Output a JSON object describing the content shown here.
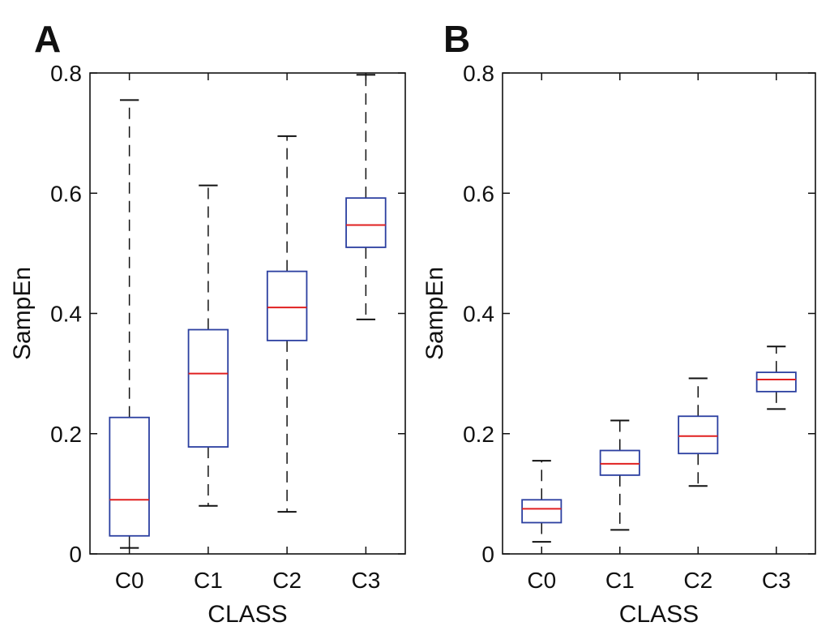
{
  "chart_data": [
    {
      "panel": "A",
      "type": "boxplot",
      "xlabel": "CLASS",
      "ylabel": "SampEn",
      "ylim": [
        0,
        0.8
      ],
      "yticks": [
        "0",
        "0.2",
        "0.4",
        "0.6",
        "0.8"
      ],
      "categories": [
        "C0",
        "C1",
        "C2",
        "C3"
      ],
      "boxes": [
        {
          "category": "C0",
          "whisker_low": 0.01,
          "q1": 0.03,
          "median": 0.09,
          "q3": 0.227,
          "whisker_high": 0.755
        },
        {
          "category": "C1",
          "whisker_low": 0.08,
          "q1": 0.178,
          "median": 0.3,
          "q3": 0.373,
          "whisker_high": 0.613
        },
        {
          "category": "C2",
          "whisker_low": 0.07,
          "q1": 0.355,
          "median": 0.41,
          "q3": 0.47,
          "whisker_high": 0.695
        },
        {
          "category": "C3",
          "whisker_low": 0.39,
          "q1": 0.51,
          "median": 0.547,
          "q3": 0.592,
          "whisker_high": 0.797
        }
      ]
    },
    {
      "panel": "B",
      "type": "boxplot",
      "xlabel": "CLASS",
      "ylabel": "SampEn",
      "ylim": [
        0,
        0.8
      ],
      "yticks": [
        "0",
        "0.2",
        "0.4",
        "0.6",
        "0.8"
      ],
      "categories": [
        "C0",
        "C1",
        "C2",
        "C3"
      ],
      "boxes": [
        {
          "category": "C0",
          "whisker_low": 0.02,
          "q1": 0.052,
          "median": 0.075,
          "q3": 0.09,
          "whisker_high": 0.155
        },
        {
          "category": "C1",
          "whisker_low": 0.04,
          "q1": 0.131,
          "median": 0.15,
          "q3": 0.172,
          "whisker_high": 0.222
        },
        {
          "category": "C2",
          "whisker_low": 0.113,
          "q1": 0.167,
          "median": 0.196,
          "q3": 0.229,
          "whisker_high": 0.292
        },
        {
          "category": "C3",
          "whisker_low": 0.241,
          "q1": 0.27,
          "median": 0.29,
          "q3": 0.302,
          "whisker_high": 0.345
        }
      ]
    }
  ],
  "colors": {
    "box": "#2b3fa0",
    "median": "#e02020",
    "whisker": "#111111",
    "axis": "#111111"
  }
}
